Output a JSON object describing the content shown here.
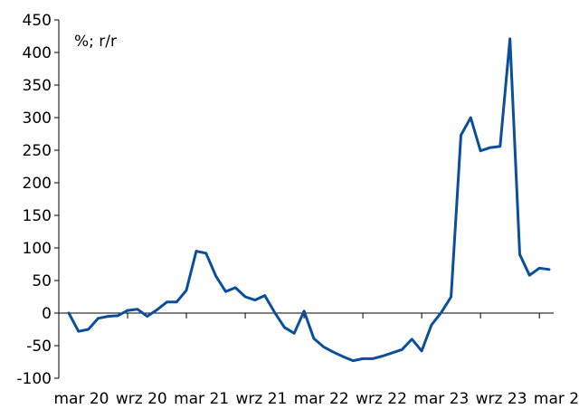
{
  "chart_data": {
    "type": "line",
    "title": "",
    "xlabel": "",
    "ylabel": "",
    "unit_annotation": "%; r/r",
    "ylim": [
      -100,
      450
    ],
    "yticks": [
      -100,
      -50,
      0,
      50,
      100,
      150,
      200,
      250,
      300,
      350,
      400,
      450
    ],
    "x_tick_labels": [
      "mar 20",
      "wrz 20",
      "mar 21",
      "wrz 21",
      "mar 22",
      "wrz 22",
      "mar 23",
      "wrz 23",
      "mar 24"
    ],
    "x": [
      "2020-03",
      "2020-04",
      "2020-05",
      "2020-06",
      "2020-07",
      "2020-08",
      "2020-09",
      "2020-10",
      "2020-11",
      "2020-12",
      "2021-01",
      "2021-02",
      "2021-03",
      "2021-04",
      "2021-05",
      "2021-06",
      "2021-07",
      "2021-08",
      "2021-09",
      "2021-10",
      "2021-11",
      "2021-12",
      "2022-01",
      "2022-02",
      "2022-03",
      "2022-04",
      "2022-05",
      "2022-06",
      "2022-07",
      "2022-08",
      "2022-09",
      "2022-10",
      "2022-11",
      "2022-12",
      "2023-01",
      "2023-02",
      "2023-03",
      "2023-04",
      "2023-05",
      "2023-06",
      "2023-07",
      "2023-08",
      "2023-09",
      "2023-10",
      "2023-11",
      "2023-12",
      "2024-01",
      "2024-02",
      "2024-03",
      "2024-04"
    ],
    "series": [
      {
        "name": "",
        "color": "#0a4f9c",
        "values": [
          0,
          -28,
          -25,
          -8,
          -5,
          -4,
          4,
          6,
          -5,
          5,
          17,
          17,
          35,
          95,
          92,
          57,
          33,
          39,
          25,
          20,
          27,
          1,
          -22,
          -31,
          3,
          -39,
          -52,
          -60,
          -67,
          -73,
          -70,
          -70,
          -66,
          -61,
          -56,
          -40,
          -58,
          -18,
          1,
          25,
          273,
          300,
          249,
          254,
          256,
          421,
          90,
          58,
          69,
          67
        ]
      }
    ],
    "grid": false,
    "legend": "none",
    "axis_color": "#000000"
  }
}
